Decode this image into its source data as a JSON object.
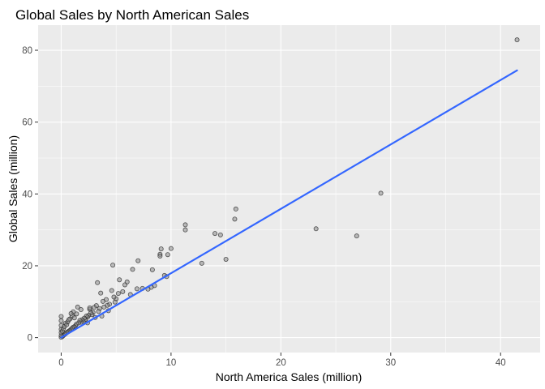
{
  "chart_data": {
    "type": "scatter",
    "title": "Global Sales by North American Sales",
    "xlabel": "North America Sales (million)",
    "ylabel": "Global Sales (million)",
    "xlim": [
      -2.1,
      43.6
    ],
    "ylim": [
      -4.15,
      87.0
    ],
    "x_ticks": [
      0,
      10,
      20,
      30,
      40
    ],
    "y_ticks": [
      0,
      20,
      40,
      60,
      80
    ],
    "grid": true,
    "legend": "none",
    "colors": {
      "panel": "#ebebeb",
      "grid": "#ffffff",
      "point_fill": "#8c8c8c",
      "point_stroke": "#1a1a1a",
      "trend_line": "#3366ff",
      "tick_mark": "#333333"
    },
    "series": [
      {
        "points": [
          [
            41.5,
            82.9
          ],
          [
            29.1,
            40.2
          ],
          [
            26.9,
            28.3
          ],
          [
            23.2,
            30.3
          ],
          [
            15.9,
            35.8
          ],
          [
            15.8,
            33.0
          ],
          [
            15.0,
            21.8
          ],
          [
            14.5,
            28.6
          ],
          [
            14.0,
            29.0
          ],
          [
            12.8,
            20.7
          ],
          [
            11.3,
            31.4
          ],
          [
            11.3,
            30.0
          ],
          [
            10.0,
            24.8
          ],
          [
            9.6,
            17.0
          ],
          [
            9.4,
            17.3
          ],
          [
            9.1,
            24.7
          ],
          [
            9.0,
            23.2
          ],
          [
            9.0,
            22.7
          ],
          [
            9.7,
            23.1
          ],
          [
            8.3,
            18.9
          ],
          [
            8.5,
            14.5
          ],
          [
            8.2,
            14.0
          ],
          [
            7.9,
            13.5
          ],
          [
            7.4,
            13.7
          ],
          [
            7.0,
            21.4
          ],
          [
            6.9,
            13.6
          ],
          [
            6.5,
            19.0
          ],
          [
            6.3,
            12.0
          ],
          [
            6.0,
            15.5
          ],
          [
            5.8,
            14.7
          ],
          [
            5.6,
            12.8
          ],
          [
            5.3,
            16.1
          ],
          [
            5.2,
            12.3
          ],
          [
            5.0,
            10.8
          ],
          [
            4.9,
            9.9
          ],
          [
            4.8,
            11.3
          ],
          [
            4.7,
            20.2
          ],
          [
            4.6,
            13.1
          ],
          [
            4.4,
            9.3
          ],
          [
            4.2,
            9.0
          ],
          [
            4.1,
            10.6
          ],
          [
            3.9,
            8.5
          ],
          [
            3.8,
            10.1
          ],
          [
            3.6,
            12.4
          ],
          [
            3.5,
            8.1
          ],
          [
            3.4,
            7.3
          ],
          [
            3.3,
            15.3
          ],
          [
            3.2,
            8.9
          ],
          [
            3.0,
            8.4
          ],
          [
            2.9,
            7.0
          ],
          [
            2.8,
            6.4
          ],
          [
            2.7,
            6.9
          ],
          [
            2.6,
            7.9
          ],
          [
            2.5,
            6.2
          ],
          [
            2.4,
            5.7
          ],
          [
            2.3,
            6.0
          ],
          [
            2.2,
            5.1
          ],
          [
            2.1,
            5.4
          ],
          [
            2.0,
            4.6
          ],
          [
            1.9,
            5.0
          ],
          [
            1.8,
            4.3
          ],
          [
            1.7,
            4.8
          ],
          [
            1.6,
            4.1
          ],
          [
            1.5,
            8.5
          ],
          [
            1.4,
            3.8
          ],
          [
            1.3,
            3.3
          ],
          [
            1.2,
            3.0
          ],
          [
            1.1,
            2.9
          ],
          [
            1.0,
            2.6
          ],
          [
            0.9,
            2.3
          ],
          [
            0.8,
            2.0
          ],
          [
            0.7,
            1.8
          ],
          [
            0.6,
            1.6
          ],
          [
            0.5,
            1.4
          ],
          [
            0.4,
            1.1
          ],
          [
            0.3,
            0.9
          ],
          [
            0.2,
            0.6
          ],
          [
            0.1,
            0.3
          ],
          [
            0.0,
            0.1
          ],
          [
            0.0,
            0.6
          ],
          [
            0.0,
            1.4
          ],
          [
            0.0,
            2.3
          ],
          [
            0.0,
            3.4
          ],
          [
            0.0,
            4.7
          ],
          [
            0.0,
            5.9
          ],
          [
            0.1,
            1.8
          ],
          [
            0.2,
            2.5
          ],
          [
            0.3,
            3.1
          ],
          [
            0.4,
            4.0
          ],
          [
            0.5,
            3.6
          ],
          [
            0.6,
            4.4
          ],
          [
            0.8,
            5.2
          ],
          [
            1.0,
            6.1
          ],
          [
            1.2,
            5.5
          ],
          [
            1.4,
            6.6
          ],
          [
            1.1,
            7.2
          ],
          [
            0.9,
            6.7
          ],
          [
            2.4,
            4.1
          ],
          [
            3.1,
            5.6
          ],
          [
            3.7,
            6.0
          ],
          [
            4.3,
            7.5
          ],
          [
            2.6,
            8.3
          ],
          [
            1.8,
            7.8
          ],
          [
            0.7,
            5.0
          ]
        ]
      }
    ],
    "trend_line": {
      "x": [
        0,
        41.5
      ],
      "y": [
        0,
        74.4
      ]
    }
  }
}
